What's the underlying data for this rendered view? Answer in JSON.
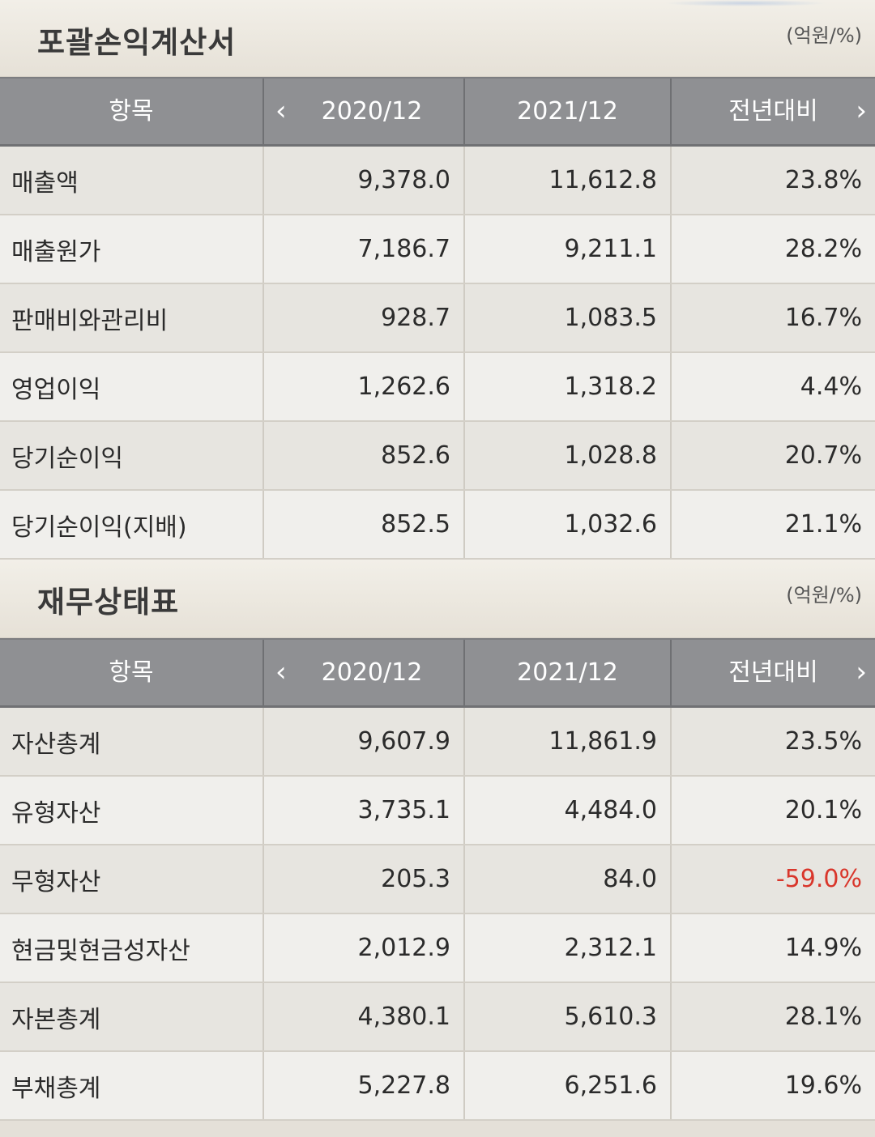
{
  "income_statement": {
    "title": "포괄손익계산서",
    "unit": "(억원/%)",
    "columns": [
      "항목",
      "2020/12",
      "2021/12",
      "전년대비"
    ],
    "rows": [
      {
        "label": "매출액",
        "v2020": "9,378.0",
        "v2021": "11,612.8",
        "yoy": "23.8%"
      },
      {
        "label": "매출원가",
        "v2020": "7,186.7",
        "v2021": "9,211.1",
        "yoy": "28.2%"
      },
      {
        "label": "판매비와관리비",
        "v2020": "928.7",
        "v2021": "1,083.5",
        "yoy": "16.7%"
      },
      {
        "label": "영업이익",
        "v2020": "1,262.6",
        "v2021": "1,318.2",
        "yoy": "4.4%"
      },
      {
        "label": "당기순이익",
        "v2020": "852.6",
        "v2021": "1,028.8",
        "yoy": "20.7%"
      },
      {
        "label": "당기순이익(지배)",
        "v2020": "852.5",
        "v2021": "1,032.6",
        "yoy": "21.1%"
      }
    ]
  },
  "balance_sheet": {
    "title": "재무상태표",
    "unit": "(억원/%)",
    "columns": [
      "항목",
      "2020/12",
      "2021/12",
      "전년대비"
    ],
    "rows": [
      {
        "label": "자산총계",
        "v2020": "9,607.9",
        "v2021": "11,861.9",
        "yoy": "23.5%"
      },
      {
        "label": "유형자산",
        "v2020": "3,735.1",
        "v2021": "4,484.0",
        "yoy": "20.1%"
      },
      {
        "label": "무형자산",
        "v2020": "205.3",
        "v2021": "84.0",
        "yoy": "-59.0%"
      },
      {
        "label": "현금및현금성자산",
        "v2020": "2,012.9",
        "v2021": "2,312.1",
        "yoy": "14.9%"
      },
      {
        "label": "자본총계",
        "v2020": "4,380.1",
        "v2021": "5,610.3",
        "yoy": "28.1%"
      },
      {
        "label": "부채총계",
        "v2020": "5,227.8",
        "v2021": "6,251.6",
        "yoy": "19.6%"
      }
    ]
  },
  "icons": {
    "prev": "‹",
    "next": "›"
  },
  "colors": {
    "header_bg": "#8f9093",
    "negative": "#d9362b"
  }
}
